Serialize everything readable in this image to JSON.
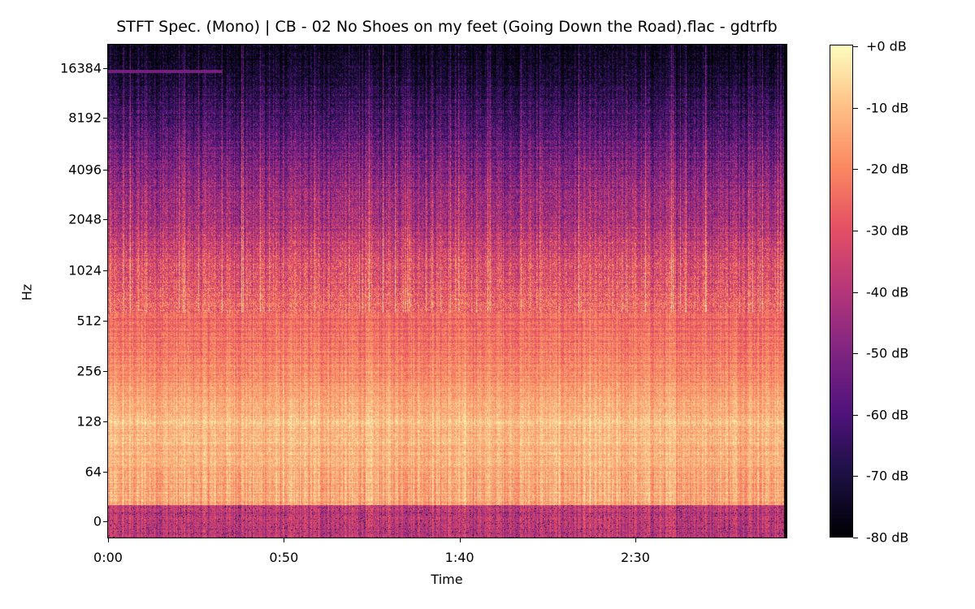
{
  "chart_data": {
    "type": "heatmap",
    "title": "STFT Spec. (Mono) | CB - 02 No Shoes on my feet (Going Down the Road).flac - gdtrfb",
    "xlabel": "Time",
    "ylabel": "Hz",
    "x_ticks": [
      "0:00",
      "0:50",
      "1:40",
      "2:30"
    ],
    "x_tick_seconds": [
      0,
      50,
      100,
      150
    ],
    "xlim_seconds": [
      0,
      193
    ],
    "y_scale": "log",
    "y_ticks": [
      "0",
      "64",
      "128",
      "256",
      "512",
      "1024",
      "2048",
      "4096",
      "8192",
      "16384"
    ],
    "ylim_hz": [
      0,
      22050
    ],
    "colormap": "magma",
    "colorbar": {
      "ticks": [
        "+0 dB",
        "-10 dB",
        "-20 dB",
        "-30 dB",
        "-40 dB",
        "-50 dB",
        "-60 dB",
        "-70 dB",
        "-80 dB"
      ],
      "range_db": [
        -80,
        0
      ]
    },
    "approx_mean_db_by_freq": {
      "freq_hz": [
        0,
        64,
        128,
        256,
        512,
        1024,
        2048,
        4096,
        8192,
        16384,
        22050
      ],
      "db": [
        -38,
        -14,
        -10,
        -20,
        -25,
        -31,
        -42,
        -50,
        -62,
        -75,
        -79
      ]
    },
    "annotation": "narrow line near 16 kHz in first ~35 s"
  }
}
